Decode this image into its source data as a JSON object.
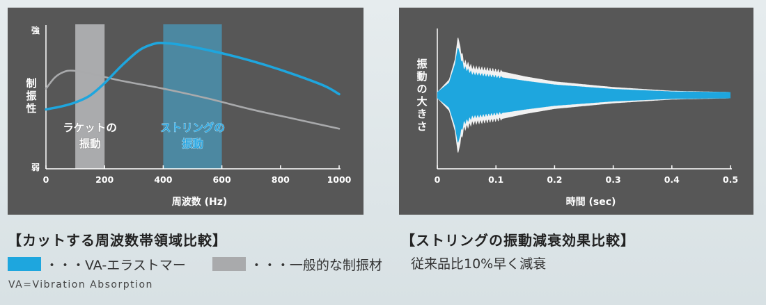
{
  "captions": {
    "left": "【カットする周波数帯領域比較】",
    "right": "【ストリングの振動減衰効果比較】"
  },
  "legend": {
    "va_label": "・・・VA-エラストマー",
    "generic_label": "・・・一般的な制振材",
    "right_label": "従来品比10%早く減衰",
    "note": "VA=Vibration Absorption"
  },
  "colors": {
    "panel_bg": "#575757",
    "va": "#1ea6de",
    "generic": "#a9aaac",
    "axis": "#ffffff"
  },
  "chart_data": [
    {
      "type": "line",
      "xlabel": "周波数 (Hz)",
      "ylabel": "制振性",
      "y_top_label": "強",
      "y_bottom_label": "弱",
      "xlim": [
        0,
        1000
      ],
      "ylim": [
        0,
        100
      ],
      "x_ticks": [
        "0",
        "200",
        "400",
        "600",
        "800",
        "1000"
      ],
      "bands": [
        {
          "name": "racket",
          "x_start": 100,
          "x_end": 200,
          "label_line1": "ラケットの",
          "label_line2": "振動"
        },
        {
          "name": "string",
          "x_start": 400,
          "x_end": 600,
          "label_line1": "ストリングの",
          "label_line2": "振動"
        }
      ],
      "series": [
        {
          "key": "generic",
          "points": [
            [
              0,
              58
            ],
            [
              30,
              66
            ],
            [
              60,
              70
            ],
            [
              90,
              71
            ],
            [
              150,
              69
            ],
            [
              250,
              64
            ],
            [
              400,
              58
            ],
            [
              550,
              51
            ],
            [
              700,
              43
            ],
            [
              850,
              36
            ],
            [
              1000,
              29
            ]
          ]
        },
        {
          "key": "va",
          "points": [
            [
              0,
              43
            ],
            [
              50,
              45
            ],
            [
              100,
              48
            ],
            [
              150,
              53
            ],
            [
              200,
              62
            ],
            [
              260,
              75
            ],
            [
              320,
              86
            ],
            [
              370,
              90.5
            ],
            [
              400,
              91
            ],
            [
              450,
              90
            ],
            [
              550,
              86
            ],
            [
              650,
              81
            ],
            [
              750,
              75
            ],
            [
              850,
              68
            ],
            [
              950,
              60
            ],
            [
              1000,
              54
            ]
          ]
        }
      ]
    },
    {
      "type": "area",
      "xlabel": "時間 (sec)",
      "ylabel": "振動の大きさ",
      "xlim": [
        0,
        0.5
      ],
      "x_ticks": [
        "0",
        "0.1",
        "0.2",
        "0.3",
        "0.4",
        "0.5"
      ],
      "series": [
        {
          "key": "generic",
          "envelope": [
            [
              0,
              0.05
            ],
            [
              0.02,
              0.25
            ],
            [
              0.03,
              0.58
            ],
            [
              0.035,
              0.95
            ],
            [
              0.045,
              0.55
            ],
            [
              0.06,
              0.45
            ],
            [
              0.1,
              0.4
            ],
            [
              0.15,
              0.3
            ],
            [
              0.2,
              0.22
            ],
            [
              0.3,
              0.13
            ],
            [
              0.4,
              0.07
            ],
            [
              0.5,
              0.05
            ]
          ]
        },
        {
          "key": "va",
          "envelope": [
            [
              0,
              0.05
            ],
            [
              0.02,
              0.2
            ],
            [
              0.03,
              0.5
            ],
            [
              0.035,
              0.78
            ],
            [
              0.045,
              0.45
            ],
            [
              0.06,
              0.35
            ],
            [
              0.1,
              0.3
            ],
            [
              0.15,
              0.23
            ],
            [
              0.2,
              0.17
            ],
            [
              0.3,
              0.1
            ],
            [
              0.4,
              0.06
            ],
            [
              0.5,
              0.05
            ]
          ]
        }
      ]
    }
  ]
}
